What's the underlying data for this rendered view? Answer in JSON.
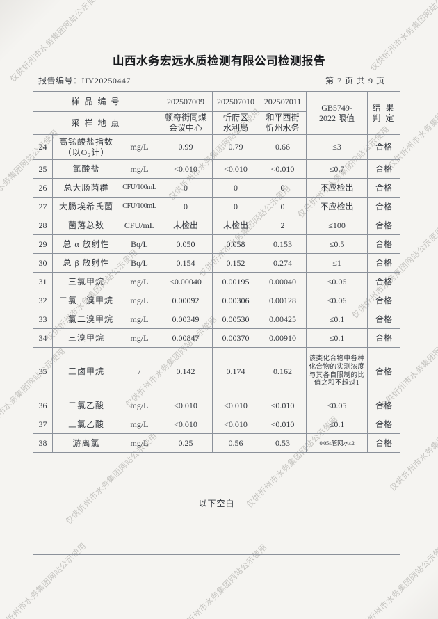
{
  "watermark": {
    "text": "仅供忻州市水务集团网站公示使用"
  },
  "header": {
    "title": "山西水务宏远水质检测有限公司检测报告",
    "report_no": "报告编号：HY20250447",
    "page_info": "第 7 页 共 9 页"
  },
  "table": {
    "header": {
      "sample_id_label": "样 品 编 号",
      "location_label": "采 样 地 点",
      "sample_ids": [
        "202507009",
        "202507010",
        "202507011"
      ],
      "locations": [
        "顿奇街同煤\n会议中心",
        "忻府区\n水利局",
        "和平西街\n忻州水务"
      ],
      "limit_label": "GB5749-\n2022 限值",
      "result_label": "结 果\n判 定"
    },
    "rows": [
      {
        "no": "24",
        "name": "高锰酸盐指数\n（以O₂计）",
        "unit": "mg/L",
        "values": [
          "0.99",
          "0.79",
          "0.66"
        ],
        "limit": "≤3",
        "result": "合格"
      },
      {
        "no": "25",
        "name": "氯酸盐",
        "unit": "mg/L",
        "values": [
          "<0.010",
          "<0.010",
          "<0.010"
        ],
        "limit": "≤0.7",
        "result": "合格"
      },
      {
        "no": "26",
        "name": "总大肠菌群",
        "unit": "CFU/100mL",
        "values": [
          "0",
          "0",
          "0"
        ],
        "limit": "不应检出",
        "result": "合格"
      },
      {
        "no": "27",
        "name": "大肠埃希氏菌",
        "unit": "CFU/100mL",
        "values": [
          "0",
          "0",
          "0"
        ],
        "limit": "不应检出",
        "result": "合格"
      },
      {
        "no": "28",
        "name": "菌落总数",
        "unit": "CFU/mL",
        "values": [
          "未检出",
          "未检出",
          "2"
        ],
        "limit": "≤100",
        "result": "合格"
      },
      {
        "no": "29",
        "name": "总 α 放射性",
        "unit": "Bq/L",
        "values": [
          "0.050",
          "0.058",
          "0.153"
        ],
        "limit": "≤0.5",
        "result": "合格"
      },
      {
        "no": "30",
        "name": "总 β 放射性",
        "unit": "Bq/L",
        "values": [
          "0.154",
          "0.152",
          "0.274"
        ],
        "limit": "≤1",
        "result": "合格"
      },
      {
        "no": "31",
        "name": "三氯甲烷",
        "unit": "mg/L",
        "values": [
          "<0.00040",
          "0.00195",
          "0.00040"
        ],
        "limit": "≤0.06",
        "result": "合格"
      },
      {
        "no": "32",
        "name": "二氯一溴甲烷",
        "unit": "mg/L",
        "values": [
          "0.00092",
          "0.00306",
          "0.00128"
        ],
        "limit": "≤0.06",
        "result": "合格"
      },
      {
        "no": "33",
        "name": "一氯二溴甲烷",
        "unit": "mg/L",
        "values": [
          "0.00349",
          "0.00530",
          "0.00425"
        ],
        "limit": "≤0.1",
        "result": "合格"
      },
      {
        "no": "34",
        "name": "三溴甲烷",
        "unit": "mg/L",
        "values": [
          "0.00847",
          "0.00370",
          "0.00910"
        ],
        "limit": "≤0.1",
        "result": "合格"
      },
      {
        "no": "35",
        "name": "三卤甲烷",
        "unit": "/",
        "values": [
          "0.142",
          "0.174",
          "0.162"
        ],
        "limit": "该类化合物中各种化合物的实测浓度与其各自限制的比值之和不超过1",
        "result": "合格"
      },
      {
        "no": "36",
        "name": "二氯乙酸",
        "unit": "mg/L",
        "values": [
          "<0.010",
          "<0.010",
          "<0.010"
        ],
        "limit": "≤0.05",
        "result": "合格"
      },
      {
        "no": "37",
        "name": "三氯乙酸",
        "unit": "mg/L",
        "values": [
          "<0.010",
          "<0.010",
          "<0.010"
        ],
        "limit": "≤0.1",
        "result": "合格"
      },
      {
        "no": "38",
        "name": "游离氯",
        "unit": "mg/L",
        "values": [
          "0.25",
          "0.56",
          "0.53"
        ],
        "limit": "0.05≤管网水≤2",
        "result": "合格"
      }
    ],
    "footer_note": "以下空白"
  }
}
